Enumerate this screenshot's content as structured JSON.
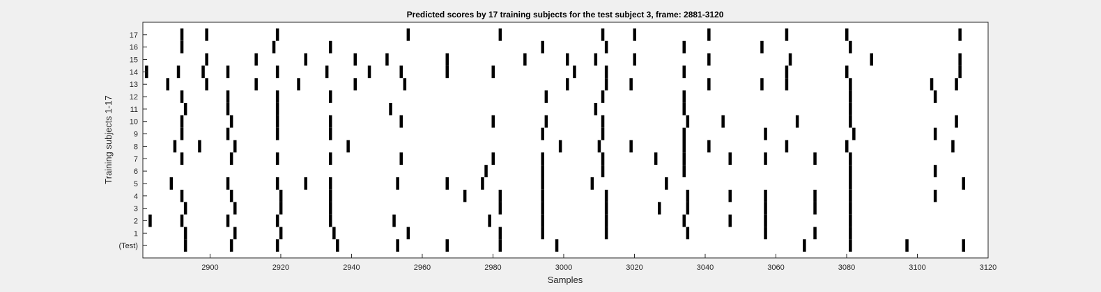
{
  "chart_data": {
    "type": "raster",
    "title": "Predicted scores by 17 training subjects for the test subject 3, frame: 2881-3120",
    "xlabel": "Samples",
    "ylabel": "Training subjects 1-17",
    "xlim": [
      2881,
      3120
    ],
    "xticks": [
      2900,
      2920,
      2940,
      2960,
      2980,
      3000,
      3020,
      3040,
      3060,
      3080,
      3100,
      3120
    ],
    "grid": false,
    "legend": "none",
    "rows": [
      {
        "label": "(Test)",
        "events": [
          2893,
          2906,
          2919,
          2936,
          2953,
          2967,
          2982,
          2998,
          3068,
          3081,
          3097,
          3113
        ]
      },
      {
        "label": "1",
        "events": [
          2893,
          2907,
          2920,
          2935,
          2956,
          2982,
          2994,
          3012,
          3035,
          3057,
          3071,
          3081
        ]
      },
      {
        "label": "2",
        "events": [
          2883,
          2892,
          2905,
          2919,
          2934,
          2952,
          2979,
          2994,
          3012,
          3034,
          3047,
          3057,
          3081
        ]
      },
      {
        "label": "3",
        "events": [
          2893,
          2907,
          2920,
          2934,
          2982,
          2994,
          3012,
          3027,
          3035,
          3057,
          3071,
          3081
        ]
      },
      {
        "label": "4",
        "events": [
          2892,
          2906,
          2920,
          2934,
          2972,
          2982,
          2994,
          3012,
          3035,
          3047,
          3057,
          3071,
          3081,
          3105
        ]
      },
      {
        "label": "5",
        "events": [
          2889,
          2905,
          2919,
          2927,
          2934,
          2953,
          2967,
          2977,
          2994,
          3008,
          3029,
          3081,
          3113
        ]
      },
      {
        "label": "6",
        "events": [
          2978,
          2994,
          3011,
          3034,
          3081,
          3105
        ]
      },
      {
        "label": "7",
        "events": [
          2892,
          2906,
          2919,
          2934,
          2954,
          2980,
          2994,
          3011,
          3026,
          3034,
          3047,
          3057,
          3071,
          3081
        ]
      },
      {
        "label": "8",
        "events": [
          2890,
          2897,
          2907,
          2939,
          2999,
          3010,
          3019,
          3034,
          3041,
          3063,
          3080,
          3110
        ]
      },
      {
        "label": "9",
        "events": [
          2892,
          2905,
          2919,
          2934,
          2994,
          3011,
          3034,
          3057,
          3082,
          3105
        ]
      },
      {
        "label": "10",
        "events": [
          2892,
          2906,
          2919,
          2934,
          2954,
          2980,
          2995,
          3011,
          3035,
          3045,
          3066,
          3081,
          3111
        ]
      },
      {
        "label": "11",
        "events": [
          2893,
          2905,
          2919,
          2951,
          3009,
          3034,
          3081
        ]
      },
      {
        "label": "12",
        "events": [
          2892,
          2905,
          2919,
          2934,
          2995,
          3011,
          3034,
          3081,
          3105
        ]
      },
      {
        "label": "13",
        "events": [
          2888,
          2899,
          2913,
          2925,
          2941,
          2955,
          3001,
          3012,
          3019,
          3041,
          3056,
          3063,
          3081,
          3104,
          3111
        ]
      },
      {
        "label": "14",
        "events": [
          2882,
          2891,
          2898,
          2905,
          2919,
          2933,
          2945,
          2954,
          2967,
          2980,
          3003,
          3012,
          3034,
          3063,
          3080,
          3112
        ]
      },
      {
        "label": "15",
        "events": [
          2899,
          2913,
          2927,
          2941,
          2950,
          2967,
          2989,
          3001,
          3009,
          3020,
          3041,
          3064,
          3087,
          3112
        ]
      },
      {
        "label": "16",
        "events": [
          2892,
          2918,
          2934,
          2994,
          3012,
          3034,
          3056,
          3081
        ]
      },
      {
        "label": "17",
        "events": [
          2892,
          2899,
          2919,
          2956,
          2982,
          3011,
          3020,
          3041,
          3063,
          3080,
          3112
        ]
      }
    ]
  }
}
